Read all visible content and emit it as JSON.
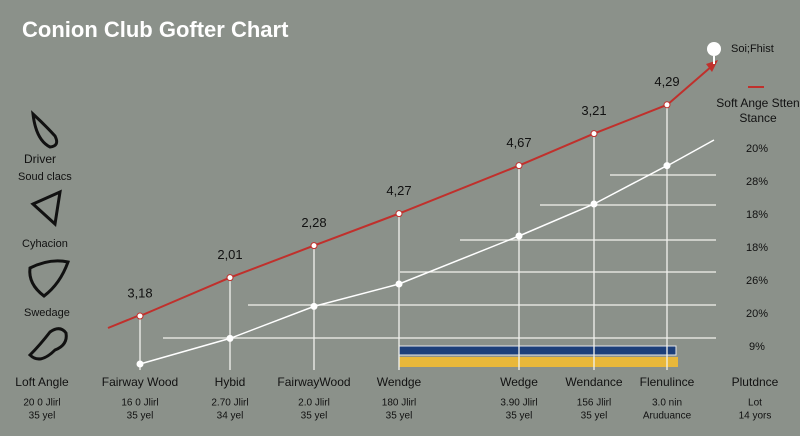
{
  "chart_data": {
    "type": "line",
    "title": "Conion Club Gofter Chart",
    "categories": [
      "Loft Angle",
      "Fairway Wood",
      "Hybid",
      "FairwayWood",
      "Wendge",
      "Wedge",
      "Wendance",
      "Flenulince",
      "Plutdnce"
    ],
    "details": [
      [
        "20 0 Jlirl",
        "35 yel"
      ],
      [
        "16 0 Jlirl",
        "35 yel"
      ],
      [
        "2.70 Jlirl",
        "34 yel"
      ],
      [
        "2.0 Jlirl",
        "35 yel"
      ],
      [
        "180 Jlirl",
        "35 yel"
      ],
      [
        "3.90 Jlirl",
        "35 yel"
      ],
      [
        "156 Jlirl",
        "35 yel"
      ],
      [
        "3.0 nin",
        "Aruduance"
      ],
      [
        "Lot",
        "14 yors"
      ]
    ],
    "series": [
      {
        "name": "Soi;Fhist",
        "color": "#ffffff",
        "values": [
          null,
          5,
          13,
          23,
          30,
          45,
          55,
          67,
          null
        ]
      },
      {
        "name": "Soft Ange Stten Stance",
        "color": "#c0302c",
        "values": [
          null,
          20,
          32,
          42,
          52,
          67,
          77,
          86,
          null
        ]
      }
    ],
    "point_labels": [
      null,
      "3,18",
      "2,01",
      "2,28",
      "4,27",
      "4,67",
      "3,21",
      "4,29",
      null
    ],
    "side_labels": [
      "20%",
      "28%",
      "18%",
      "18%",
      "26%",
      "20%",
      "9%"
    ],
    "club_labels": [
      "Driver",
      "Soud clacs",
      "Cyhacion",
      "Swedage"
    ],
    "ylim": [
      0,
      100
    ]
  }
}
